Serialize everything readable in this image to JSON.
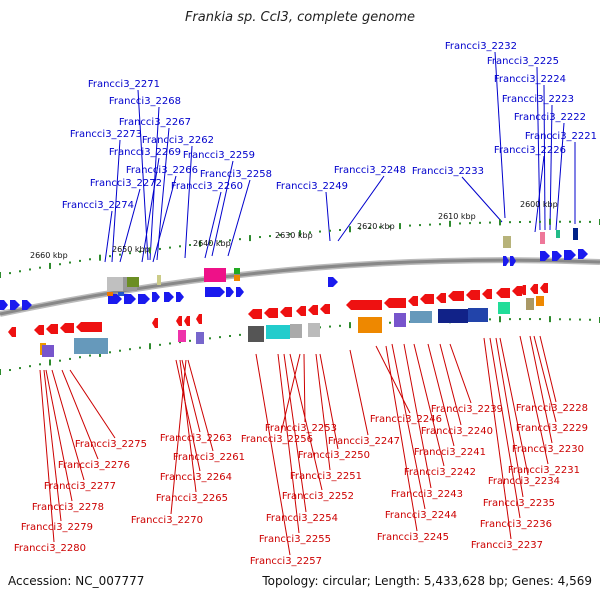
{
  "title": "Frankia sp. CcI3, complete genome",
  "footer": {
    "accession": "Accession: NC_007777",
    "summary": "Topology: circular; Length: 5,433,628 bp; Genes: 4,569"
  },
  "colors": {
    "top_label": "#0000cc",
    "bottom_label": "#cc0000",
    "backbone": "#888888"
  },
  "kbp_ticks": [
    "2660 kbp",
    "2650 kbp",
    "2640 kbp",
    "2630 kbp",
    "2620 kbp",
    "2610 kbp",
    "2600 kbp"
  ],
  "top_labels": [
    "Francci3_2232",
    "Francci3_2225",
    "Francci3_2224",
    "Francci3_2223",
    "Francci3_2222",
    "Francci3_2221",
    "Francci3_2226",
    "Francci3_2271",
    "Francci3_2268",
    "Francci3_2267",
    "Francci3_2273",
    "Francci3_2262",
    "Francci3_2269",
    "Francci3_2259",
    "Francci3_2266",
    "Francci3_2258",
    "Francci3_2272",
    "Francci3_2260",
    "Francci3_2274",
    "Francci3_2248",
    "Francci3_2249",
    "Francci3_2233"
  ],
  "bottom_labels": [
    "Francci3_2275",
    "Francci3_2276",
    "Francci3_2277",
    "Francci3_2278",
    "Francci3_2279",
    "Francci3_2280",
    "Francci3_2263",
    "Francci3_2261",
    "Francci3_2264",
    "Francci3_2265",
    "Francci3_2270",
    "Francci3_2253",
    "Francci3_2256",
    "Francci3_2250",
    "Francci3_2251",
    "Francci3_2252",
    "Francci3_2254",
    "Francci3_2255",
    "Francci3_2257",
    "Francci3_2246",
    "Francci3_2247",
    "Francci3_2239",
    "Francci3_2240",
    "Francci3_2241",
    "Francci3_2242",
    "Francci3_2243",
    "Francci3_2244",
    "Francci3_2245",
    "Francci3_2228",
    "Francci3_2229",
    "Francci3_2230",
    "Francci3_2231",
    "Francci3_2234",
    "Francci3_2235",
    "Francci3_2236",
    "Francci3_2237"
  ]
}
